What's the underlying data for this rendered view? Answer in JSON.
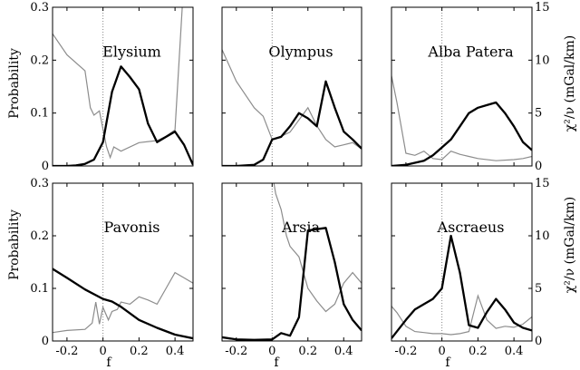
{
  "chart_data": {
    "type": "line",
    "xlabel": "f",
    "ylabel_left": "Probability",
    "ylabel_right": "χ²/ν (mGal/km)",
    "xlim": [
      -0.28,
      0.5
    ],
    "ylim_left": [
      0,
      0.3
    ],
    "ylim_right": [
      0,
      15
    ],
    "x_ticks": [
      "-0.2",
      "0",
      "0.2",
      "0.4"
    ],
    "x_tick_values": [
      -0.2,
      0,
      0.2,
      0.4
    ],
    "y_ticks_left": [
      "0",
      "0.1",
      "0.2",
      "0.3"
    ],
    "y_tick_values_left": [
      0,
      0.1,
      0.2,
      0.3
    ],
    "y_ticks_right": [
      "0",
      "5",
      "10",
      "15"
    ],
    "y_tick_values_right": [
      0,
      5,
      10,
      15
    ],
    "reference_line_x": 0,
    "colors": {
      "probability": "#000000",
      "chi2": "#8c8c8c"
    },
    "panels": [
      {
        "name": "Elysium",
        "probability": {
          "x": [
            -0.28,
            -0.2,
            -0.15,
            -0.1,
            -0.05,
            0,
            0.05,
            0.1,
            0.15,
            0.2,
            0.25,
            0.3,
            0.35,
            0.4,
            0.45,
            0.5
          ],
          "y": [
            0,
            0,
            0.001,
            0.004,
            0.012,
            0.045,
            0.14,
            0.188,
            0.168,
            0.145,
            0.08,
            0.045,
            0.055,
            0.065,
            0.04,
            0.002
          ]
        },
        "chi2": {
          "x": [
            -0.28,
            -0.2,
            -0.1,
            -0.07,
            -0.05,
            -0.02,
            0,
            0.02,
            0.04,
            0.06,
            0.1,
            0.2,
            0.3,
            0.35,
            0.4,
            0.44,
            0.46
          ],
          "y": [
            12.5,
            10.5,
            9,
            5.5,
            4.8,
            5.2,
            3.5,
            1.8,
            0.8,
            1.8,
            1.4,
            2.2,
            2.4,
            2.8,
            3.4,
            15,
            16
          ]
        }
      },
      {
        "name": "Olympus",
        "probability": {
          "x": [
            -0.28,
            -0.2,
            -0.1,
            -0.05,
            0,
            0.05,
            0.1,
            0.15,
            0.2,
            0.25,
            0.3,
            0.35,
            0.4,
            0.45,
            0.5
          ],
          "y": [
            0,
            0,
            0.002,
            0.012,
            0.05,
            0.055,
            0.075,
            0.1,
            0.09,
            0.075,
            0.16,
            0.11,
            0.065,
            0.05,
            0.033
          ]
        },
        "chi2": {
          "x": [
            -0.28,
            -0.2,
            -0.1,
            -0.05,
            0,
            0.05,
            0.1,
            0.2,
            0.25,
            0.3,
            0.35,
            0.4,
            0.45,
            0.5
          ],
          "y": [
            11,
            8,
            5.5,
            4.7,
            2.5,
            2.8,
            3.2,
            5.5,
            3.8,
            2.5,
            1.8,
            2.0,
            2.2,
            1.6
          ]
        }
      },
      {
        "name": "Alba Patera",
        "probability": {
          "x": [
            -0.28,
            -0.2,
            -0.1,
            -0.05,
            0,
            0.05,
            0.1,
            0.15,
            0.2,
            0.25,
            0.3,
            0.35,
            0.4,
            0.45,
            0.5
          ],
          "y": [
            0,
            0.002,
            0.01,
            0.02,
            0.035,
            0.05,
            0.075,
            0.1,
            0.11,
            0.115,
            0.12,
            0.1,
            0.075,
            0.045,
            0.03
          ]
        },
        "chi2": {
          "x": [
            -0.28,
            -0.25,
            -0.2,
            -0.15,
            -0.1,
            -0.05,
            0,
            0.05,
            0.1,
            0.15,
            0.2,
            0.3,
            0.4,
            0.45,
            0.5
          ],
          "y": [
            8.5,
            6,
            1.2,
            1,
            1.4,
            0.7,
            0.6,
            1.4,
            1.1,
            0.9,
            0.7,
            0.5,
            0.6,
            0.7,
            0.9
          ]
        }
      },
      {
        "name": "Pavonis",
        "probability": {
          "x": [
            -0.28,
            -0.2,
            -0.1,
            0,
            0.05,
            0.1,
            0.2,
            0.3,
            0.4,
            0.5
          ],
          "y": [
            0.137,
            0.12,
            0.098,
            0.08,
            0.075,
            0.065,
            0.04,
            0.025,
            0.012,
            0.005
          ]
        },
        "chi2": {
          "x": [
            -0.28,
            -0.2,
            -0.1,
            -0.06,
            -0.04,
            -0.02,
            0,
            0.03,
            0.05,
            0.08,
            0.1,
            0.15,
            0.2,
            0.25,
            0.3,
            0.35,
            0.4,
            0.45,
            0.5
          ],
          "y": [
            0.8,
            1,
            1.1,
            1.7,
            3.7,
            1.6,
            3.2,
            2.0,
            2.8,
            3.0,
            3.7,
            3.5,
            4.2,
            3.9,
            3.5,
            5.0,
            6.5,
            6.0,
            5.5
          ]
        }
      },
      {
        "name": "Arsia",
        "probability": {
          "x": [
            -0.28,
            -0.2,
            -0.1,
            0,
            0.05,
            0.1,
            0.15,
            0.2,
            0.3,
            0.35,
            0.4,
            0.45,
            0.5
          ],
          "y": [
            0.007,
            0.003,
            0.002,
            0.003,
            0.015,
            0.01,
            0.045,
            0.21,
            0.215,
            0.15,
            0.07,
            0.04,
            0.02
          ]
        },
        "chi2": {
          "x": [
            0,
            0.02,
            0.05,
            0.08,
            0.1,
            0.15,
            0.2,
            0.25,
            0.3,
            0.35,
            0.4,
            0.45,
            0.5
          ],
          "y": [
            16,
            14,
            12.5,
            10,
            9,
            8,
            5,
            3.8,
            2.8,
            3.5,
            5.5,
            6.5,
            5.5
          ]
        }
      },
      {
        "name": "Ascraeus",
        "probability": {
          "x": [
            -0.28,
            -0.2,
            -0.15,
            -0.1,
            -0.05,
            0,
            0.05,
            0.1,
            0.15,
            0.2,
            0.25,
            0.3,
            0.35,
            0.4,
            0.45,
            0.5
          ],
          "y": [
            0.005,
            0.04,
            0.06,
            0.07,
            0.08,
            0.1,
            0.2,
            0.13,
            0.03,
            0.025,
            0.055,
            0.08,
            0.06,
            0.035,
            0.025,
            0.02
          ]
        },
        "chi2": {
          "x": [
            -0.28,
            -0.25,
            -0.2,
            -0.15,
            -0.1,
            -0.05,
            0,
            0.05,
            0.1,
            0.15,
            0.2,
            0.25,
            0.3,
            0.35,
            0.4,
            0.45,
            0.5
          ],
          "y": [
            3.3,
            2.7,
            1.4,
            0.9,
            0.8,
            0.7,
            0.7,
            0.6,
            0.7,
            0.9,
            4.3,
            2.0,
            1.2,
            1.4,
            1.3,
            1.6,
            2.3
          ]
        }
      }
    ]
  }
}
